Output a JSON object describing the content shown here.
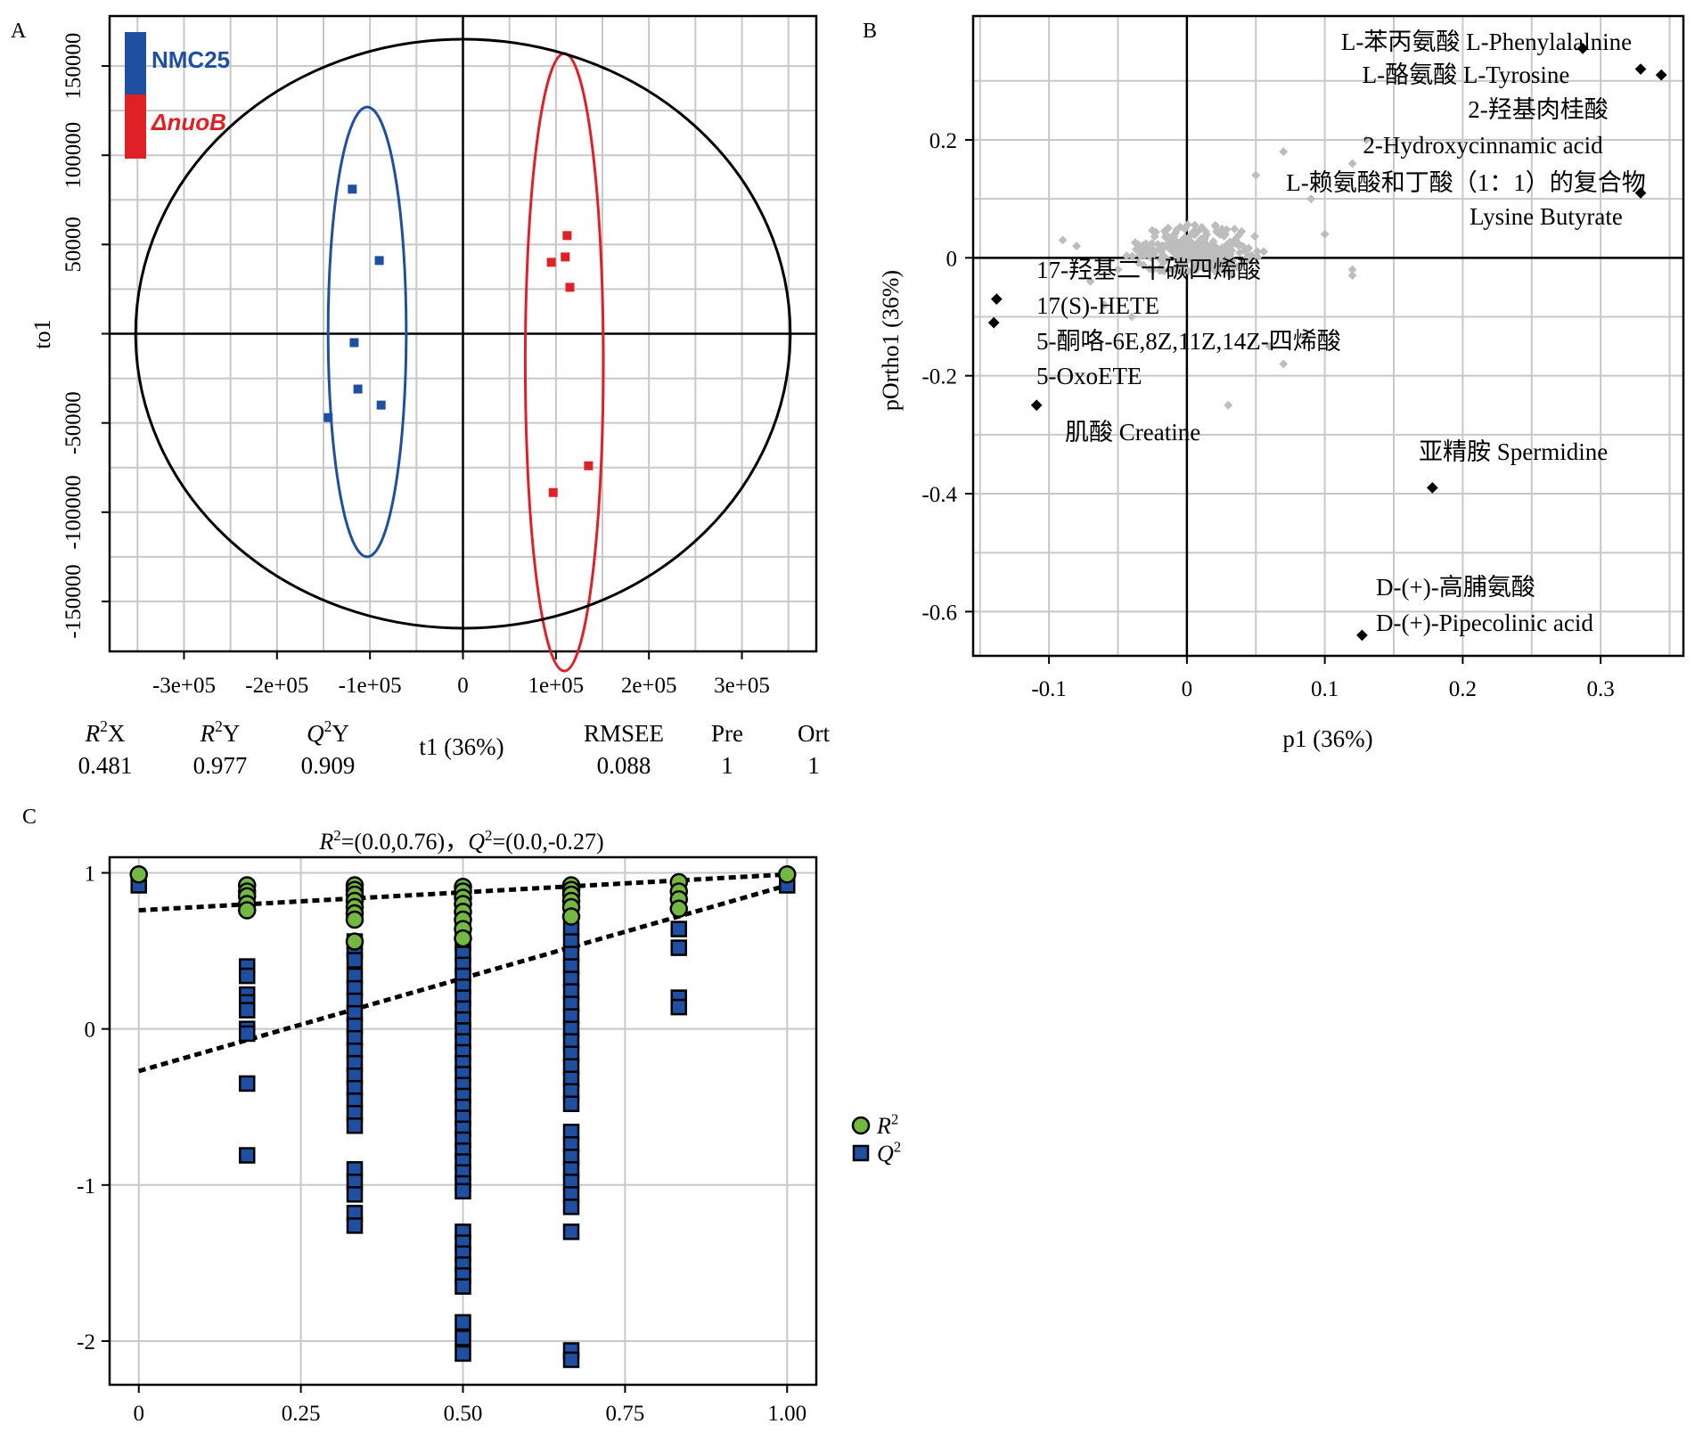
{
  "panels": {
    "A": {
      "label": "A",
      "legend": [
        {
          "name": "NMC25",
          "color": "#1f4fa0"
        },
        {
          "name": "ΔnuoB",
          "color": "#e02027"
        }
      ],
      "stats": [
        {
          "key": "R",
          "sup": "2",
          "suffix": "X",
          "value": "0.481"
        },
        {
          "key": "R",
          "sup": "2",
          "suffix": "Y",
          "value": "0.977"
        },
        {
          "key": "Q",
          "sup": "2",
          "suffix": "Y",
          "value": "0.909"
        },
        {
          "key": "RMSEE",
          "sup": "",
          "suffix": "",
          "value": "0.088"
        },
        {
          "key": "Pre",
          "sup": "",
          "suffix": "",
          "value": "1"
        },
        {
          "key": "Ort",
          "sup": "",
          "suffix": "",
          "value": "1"
        }
      ]
    },
    "B": {
      "label": "B"
    },
    "C": {
      "label": "C"
    }
  },
  "chart_data": [
    {
      "type": "scatter",
      "panel": "A",
      "xlabel": "t1 (36%)",
      "ylabel": "to1",
      "xlim": [
        -380000,
        380000
      ],
      "ylim": [
        -178000,
        178000
      ],
      "xticks": [
        -300000,
        -200000,
        -100000,
        0,
        100000,
        200000,
        300000
      ],
      "xtick_labels": [
        "-3e+05",
        "-2e+05",
        "-1e+05",
        "0",
        "1e+05",
        "2e+05",
        "3e+05"
      ],
      "yticks": [
        -150000,
        -100000,
        -50000,
        0,
        50000,
        100000,
        150000
      ],
      "ytick_labels": [
        "-150000",
        "-100000",
        "-50000",
        "",
        "50000",
        "100000",
        "150000"
      ],
      "grid": true,
      "legend_position": "top-left",
      "series": [
        {
          "name": "NMC25",
          "color": "#1f4fa0",
          "points": [
            [
              -119000,
              81000
            ],
            [
              -90000,
              41000
            ],
            [
              -117000,
              -5000
            ],
            [
              -113000,
              -31000
            ],
            [
              -88000,
              -40000
            ],
            [
              -145000,
              -47000
            ]
          ]
        },
        {
          "name": "ΔnuoB",
          "color": "#e02027",
          "points": [
            [
              112000,
              55000
            ],
            [
              95000,
              40000
            ],
            [
              110000,
              43000
            ],
            [
              115000,
              26000
            ],
            [
              135000,
              -74000
            ],
            [
              97000,
              -89000
            ]
          ]
        }
      ],
      "ellipses": [
        {
          "color": "#1f4fa0",
          "cx": -103000,
          "cy": 1000,
          "rx": 42000,
          "ry": 126000
        },
        {
          "color": "#e02027",
          "cx": 109000,
          "cy": -16000,
          "rx": 42000,
          "ry": 173000
        },
        {
          "color": "#000000",
          "cx": 0,
          "cy": 0,
          "rx": 352000,
          "ry": 165000
        }
      ]
    },
    {
      "type": "scatter",
      "panel": "B",
      "xlabel": "p1 (36%)",
      "ylabel": "pOrtho1 (36%)",
      "xlim": [
        -0.155,
        0.36
      ],
      "ylim": [
        -0.675,
        0.41
      ],
      "xticks": [
        -0.1,
        0,
        0.1,
        0.2,
        0.3
      ],
      "yticks": [
        -0.6,
        -0.4,
        -0.2,
        0,
        0.2
      ],
      "grid": true,
      "highlighted": [
        {
          "x": 0.287,
          "y": 0.355,
          "label": "L-苯丙氨酸 L-Phenylalalnine"
        },
        {
          "x": 0.329,
          "y": 0.32,
          "label": "L-酪氨酸 L-Tyrosine"
        },
        {
          "x": 0.344,
          "y": 0.31,
          "label": ""
        },
        {
          "x": 0.329,
          "y": 0.11,
          "label": "2-羟基肉桂酸 / 2-Hydroxycinnamic acid / L-赖氨酸和丁酸（1：1）的复合物 / Lysine Butyrate"
        },
        {
          "x": -0.138,
          "y": -0.07,
          "label": "17-羟基二十碳四烯酸 / 17(S)-HETE"
        },
        {
          "x": -0.14,
          "y": -0.11,
          "label": "5-酮咯-6E,8Z,11Z,14Z-四烯酸 / 5-OxoETE"
        },
        {
          "x": -0.109,
          "y": -0.25,
          "label": "肌酸 Creatine"
        },
        {
          "x": 0.178,
          "y": -0.39,
          "label": "亚精胺 Spermidine"
        },
        {
          "x": 0.127,
          "y": -0.64,
          "label": "D-(+)-高脯氨酸 D-(+)-Pipecolinic acid"
        }
      ],
      "annotations": [
        "L-苯丙氨酸 L-Phenylalalnine",
        "L-酪氨酸 L-Tyrosine",
        "2-羟基肉桂酸",
        "2-Hydroxycinnamic acid",
        "L-赖氨酸和丁酸（1：1）的复合物",
        "Lysine Butyrate",
        "17-羟基二十碳四烯酸",
        "17(S)-HETE",
        "5-酮咯-6E,8Z,11Z,14Z-四烯酸",
        "5-OxoETE",
        "肌酸 Creatine",
        "亚精胺 Spermidine",
        "D-(+)-高脯氨酸",
        "D-(+)-Pipecolinic acid"
      ]
    },
    {
      "type": "scatter",
      "panel": "C",
      "title_parts": {
        "r": "R",
        "r_sup": "2",
        "r_val": "=(0.0,0.76)，",
        "q": "Q",
        "q_sup": "2",
        "q_val": "=(0.0,-0.27)"
      },
      "xlim": [
        -0.045,
        1.045
      ],
      "ylim": [
        -2.28,
        1.1
      ],
      "xticks": [
        0,
        0.25,
        0.5,
        0.75,
        1.0
      ],
      "xtick_labels": [
        "0",
        "0.25",
        "0.50",
        "0.75",
        "1.00"
      ],
      "yticks": [
        -2,
        -1,
        0,
        1
      ],
      "ytick_labels": [
        "-2",
        "-1",
        "0",
        "1"
      ],
      "grid": true,
      "legend_position": "right",
      "series": [
        {
          "name": "R2",
          "label": "R",
          "sup": "2",
          "color": "#72b843",
          "points": [
            [
              0,
              0.99
            ],
            [
              0.167,
              0.92
            ],
            [
              0.167,
              0.88
            ],
            [
              0.167,
              0.85
            ],
            [
              0.167,
              0.8
            ],
            [
              0.167,
              0.76
            ],
            [
              0.333,
              0.92
            ],
            [
              0.333,
              0.89
            ],
            [
              0.333,
              0.86
            ],
            [
              0.333,
              0.82
            ],
            [
              0.333,
              0.78
            ],
            [
              0.333,
              0.74
            ],
            [
              0.333,
              0.7
            ],
            [
              0.333,
              0.56
            ],
            [
              0.5,
              0.91
            ],
            [
              0.5,
              0.88
            ],
            [
              0.5,
              0.84
            ],
            [
              0.5,
              0.8
            ],
            [
              0.5,
              0.75
            ],
            [
              0.5,
              0.7
            ],
            [
              0.5,
              0.64
            ],
            [
              0.5,
              0.58
            ],
            [
              0.667,
              0.92
            ],
            [
              0.667,
              0.89
            ],
            [
              0.667,
              0.86
            ],
            [
              0.667,
              0.82
            ],
            [
              0.667,
              0.78
            ],
            [
              0.667,
              0.72
            ],
            [
              0.833,
              0.94
            ],
            [
              0.833,
              0.88
            ],
            [
              0.833,
              0.83
            ],
            [
              0.833,
              0.77
            ],
            [
              1.0,
              0.99
            ]
          ]
        },
        {
          "name": "Q2",
          "label": "Q",
          "sup": "2",
          "color": "#1f4fa0",
          "points": [
            [
              0,
              0.92
            ],
            [
              0.167,
              0.4
            ],
            [
              0.167,
              0.34
            ],
            [
              0.167,
              0.22
            ],
            [
              0.167,
              0.17
            ],
            [
              0.167,
              0.12
            ],
            [
              0.167,
              0.0
            ],
            [
              0.167,
              -0.03
            ],
            [
              0.167,
              -0.35
            ],
            [
              0.167,
              -0.81
            ],
            [
              0.333,
              0.82
            ],
            [
              0.333,
              0.56
            ],
            [
              0.333,
              0.5
            ],
            [
              0.333,
              0.44
            ],
            [
              0.333,
              0.34
            ],
            [
              0.333,
              0.26
            ],
            [
              0.333,
              0.18
            ],
            [
              0.333,
              0.1
            ],
            [
              0.333,
              0.02
            ],
            [
              0.333,
              -0.06
            ],
            [
              0.333,
              -0.14
            ],
            [
              0.333,
              -0.22
            ],
            [
              0.333,
              -0.3
            ],
            [
              0.333,
              -0.38
            ],
            [
              0.333,
              -0.46
            ],
            [
              0.333,
              -0.54
            ],
            [
              0.333,
              -0.62
            ],
            [
              0.333,
              -0.9
            ],
            [
              0.333,
              -0.98
            ],
            [
              0.333,
              -1.06
            ],
            [
              0.333,
              -1.18
            ],
            [
              0.333,
              -1.26
            ],
            [
              0.5,
              0.7
            ],
            [
              0.5,
              0.62
            ],
            [
              0.5,
              0.55
            ],
            [
              0.5,
              0.48
            ],
            [
              0.5,
              0.41
            ],
            [
              0.5,
              0.34
            ],
            [
              0.5,
              0.27
            ],
            [
              0.5,
              0.2
            ],
            [
              0.5,
              0.13
            ],
            [
              0.5,
              0.06
            ],
            [
              0.5,
              -0.01
            ],
            [
              0.5,
              -0.08
            ],
            [
              0.5,
              -0.15
            ],
            [
              0.5,
              -0.22
            ],
            [
              0.5,
              -0.29
            ],
            [
              0.5,
              -0.36
            ],
            [
              0.5,
              -0.43
            ],
            [
              0.5,
              -0.5
            ],
            [
              0.5,
              -0.57
            ],
            [
              0.5,
              -0.64
            ],
            [
              0.5,
              -0.71
            ],
            [
              0.5,
              -0.78
            ],
            [
              0.5,
              -0.85
            ],
            [
              0.5,
              -0.92
            ],
            [
              0.5,
              -0.99
            ],
            [
              0.5,
              -1.04
            ],
            [
              0.5,
              -1.3
            ],
            [
              0.5,
              -1.37
            ],
            [
              0.5,
              -1.44
            ],
            [
              0.5,
              -1.51
            ],
            [
              0.5,
              -1.58
            ],
            [
              0.5,
              -1.65
            ],
            [
              0.5,
              -1.88
            ],
            [
              0.5,
              -1.98
            ],
            [
              0.5,
              -2.08
            ],
            [
              0.667,
              0.8
            ],
            [
              0.667,
              0.64
            ],
            [
              0.667,
              0.56
            ],
            [
              0.667,
              0.48
            ],
            [
              0.667,
              0.4
            ],
            [
              0.667,
              0.32
            ],
            [
              0.667,
              0.24
            ],
            [
              0.667,
              0.16
            ],
            [
              0.667,
              0.08
            ],
            [
              0.667,
              0.0
            ],
            [
              0.667,
              -0.08
            ],
            [
              0.667,
              -0.16
            ],
            [
              0.667,
              -0.24
            ],
            [
              0.667,
              -0.32
            ],
            [
              0.667,
              -0.4
            ],
            [
              0.667,
              -0.48
            ],
            [
              0.667,
              -0.66
            ],
            [
              0.667,
              -0.74
            ],
            [
              0.667,
              -0.82
            ],
            [
              0.667,
              -0.9
            ],
            [
              0.667,
              -0.98
            ],
            [
              0.667,
              -1.06
            ],
            [
              0.667,
              -1.14
            ],
            [
              0.667,
              -1.3
            ],
            [
              0.667,
              -2.06
            ],
            [
              0.667,
              -2.12
            ],
            [
              0.833,
              0.64
            ],
            [
              0.833,
              0.52
            ],
            [
              0.833,
              0.2
            ],
            [
              0.833,
              0.14
            ],
            [
              1.0,
              0.92
            ]
          ]
        }
      ],
      "trend_lines": [
        {
          "series": "R2",
          "x": [
            0,
            1
          ],
          "y": [
            0.76,
            0.99
          ]
        },
        {
          "series": "Q2",
          "x": [
            0,
            1
          ],
          "y": [
            -0.27,
            0.92
          ]
        }
      ]
    }
  ]
}
